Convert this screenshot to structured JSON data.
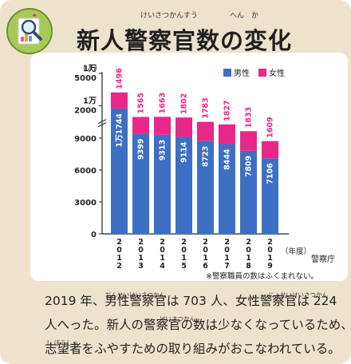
{
  "header": {
    "title": "新人警察官数の変化",
    "ruby_keisatsukansuu": "けいさつかんすう",
    "ruby_henka": "へん　か"
  },
  "chart_data": {
    "type": "bar",
    "stacked": true,
    "categories": [
      "2012",
      "2013",
      "2014",
      "2015",
      "2016",
      "2017",
      "2018",
      "2019"
    ],
    "category_chars": [
      [
        "2",
        "0",
        "1",
        "2"
      ],
      [
        "2",
        "0",
        "1",
        "3"
      ],
      [
        "2",
        "0",
        "1",
        "4"
      ],
      [
        "2",
        "0",
        "1",
        "5"
      ],
      [
        "2",
        "0",
        "1",
        "6"
      ],
      [
        "2",
        "0",
        "1",
        "7"
      ],
      [
        "2",
        "0",
        "1",
        "8"
      ],
      [
        "2",
        "0",
        "1",
        "9"
      ]
    ],
    "series": [
      {
        "name": "男性",
        "color": "#3d6fc4",
        "values": [
          11744,
          9399,
          9313,
          9114,
          8723,
          8444,
          7809,
          7106
        ]
      },
      {
        "name": "女性",
        "color": "#e8278a",
        "values": [
          1496,
          1565,
          1663,
          1802,
          1783,
          1827,
          1833,
          1609
        ]
      }
    ],
    "value_labels_male": [
      "1万1744",
      "9399",
      "9313",
      "9114",
      "8723",
      "8444",
      "7809",
      "7106"
    ],
    "value_labels_female": [
      "1496",
      "1565",
      "1663",
      "1802",
      "1783",
      "1827",
      "1833",
      "1609"
    ],
    "yunit": "（人）",
    "y_ticks": [
      "0",
      "3000",
      "6000",
      "9000",
      "1万2000",
      "1万5000"
    ],
    "y_tick_values": [
      0,
      3000,
      6000,
      9000,
      12000,
      15000
    ],
    "axis_break": true,
    "xunit": "（年度）",
    "legend_placement": "top-right",
    "grid": false
  },
  "source": "警察庁",
  "note": "※警察職員の数はふくまれない。",
  "caption": {
    "line1": "2019 年、男性警察官は 703 人、女性警察官は 224",
    "line2": "人へった。新人の警察官の数は少なくなっているため、",
    "line3": "志望者をふやすための取り組みがおこなわれている。",
    "ruby_male": "だんせいけいさつかん",
    "ruby_female": "じょせいけいさつかん",
    "ruby_keisatsukan": "けいさつかん",
    "ruby_shibousha": "し ぼうしゃ"
  }
}
